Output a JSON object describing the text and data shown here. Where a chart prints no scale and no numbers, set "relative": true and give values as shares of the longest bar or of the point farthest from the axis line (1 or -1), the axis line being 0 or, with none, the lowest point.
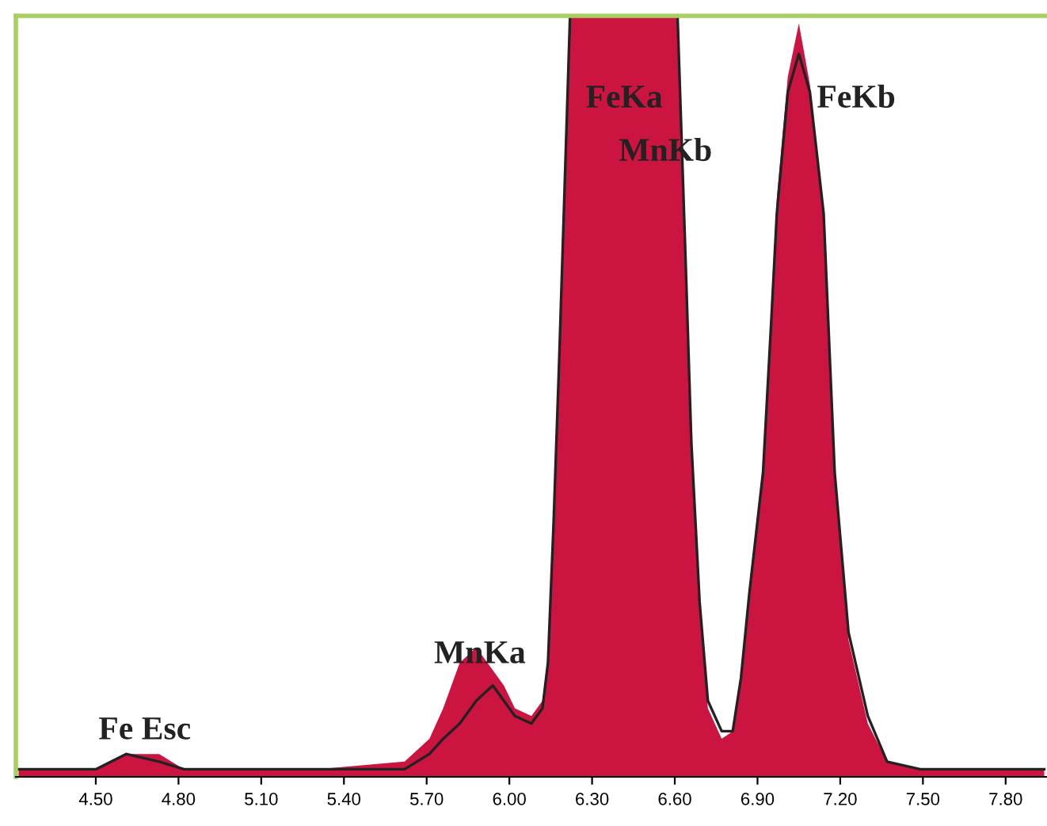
{
  "chart_data": {
    "type": "area",
    "relative": true,
    "x": [
      4.22,
      4.39,
      4.5,
      4.61,
      4.73,
      4.82,
      4.96,
      5.3,
      5.62,
      5.71,
      5.76,
      5.82,
      5.88,
      5.94,
      5.98,
      6.02,
      6.08,
      6.12,
      6.14,
      6.16,
      6.18,
      6.2,
      6.22,
      6.61,
      6.64,
      6.66,
      6.69,
      6.72,
      6.77,
      6.81,
      6.84,
      6.87,
      6.92,
      6.95,
      6.97,
      7.01,
      7.05,
      7.09,
      7.14,
      7.18,
      7.23,
      7.3,
      7.37,
      7.49,
      7.71,
      7.94
    ],
    "series": [
      {
        "color": "#cc1440",
        "values": [
          0.01,
          0.01,
          0.01,
          0.03,
          0.03,
          0.01,
          0.01,
          0.01,
          0.02,
          0.05,
          0.09,
          0.15,
          0.17,
          0.14,
          0.12,
          0.09,
          0.08,
          0.1,
          0.16,
          0.34,
          0.55,
          0.78,
          1,
          1,
          0.66,
          0.43,
          0.22,
          0.09,
          0.05,
          0.06,
          0.13,
          0.25,
          0.41,
          0.61,
          0.76,
          0.92,
          0.99,
          0.91,
          0.73,
          0.39,
          0.18,
          0.07,
          0.02,
          0.01,
          0.01,
          0.01
        ]
      },
      {
        "type": "line",
        "color": "#222222",
        "values": [
          0.01,
          0.01,
          0.01,
          0.03,
          0.02,
          0.01,
          0.01,
          0.01,
          0.01,
          0.03,
          0.05,
          0.07,
          0.1,
          0.12,
          0.1,
          0.08,
          0.07,
          0.09,
          0.15,
          0.33,
          0.54,
          0.77,
          1,
          1,
          0.67,
          0.44,
          0.23,
          0.1,
          0.06,
          0.06,
          0.13,
          0.24,
          0.4,
          0.6,
          0.74,
          0.9,
          0.95,
          0.9,
          0.74,
          0.4,
          0.19,
          0.08,
          0.02,
          0.01,
          0.01,
          0.01
        ]
      }
    ],
    "xlim": [
      4.21,
      7.95
    ],
    "xticks": [
      {
        "value": 4.5,
        "label": "4.50"
      },
      {
        "value": 4.8,
        "label": "4.80"
      },
      {
        "value": 5.1,
        "label": "5.10"
      },
      {
        "value": 5.4,
        "label": "5.40"
      },
      {
        "value": 5.7,
        "label": "5.70"
      },
      {
        "value": 6.0,
        "label": "6.00"
      },
      {
        "value": 6.3,
        "label": "6.30"
      },
      {
        "value": 6.6,
        "label": "6.60"
      },
      {
        "value": 6.9,
        "label": "6.90"
      },
      {
        "value": 7.2,
        "label": "7.20"
      },
      {
        "value": 7.5,
        "label": "7.50"
      },
      {
        "value": 7.8,
        "label": "7.80"
      }
    ],
    "annotations": [
      "FeKa",
      "MnKb",
      "FeKb",
      "MnKa",
      "Fe Esc"
    ],
    "grid": false,
    "legend": false
  }
}
